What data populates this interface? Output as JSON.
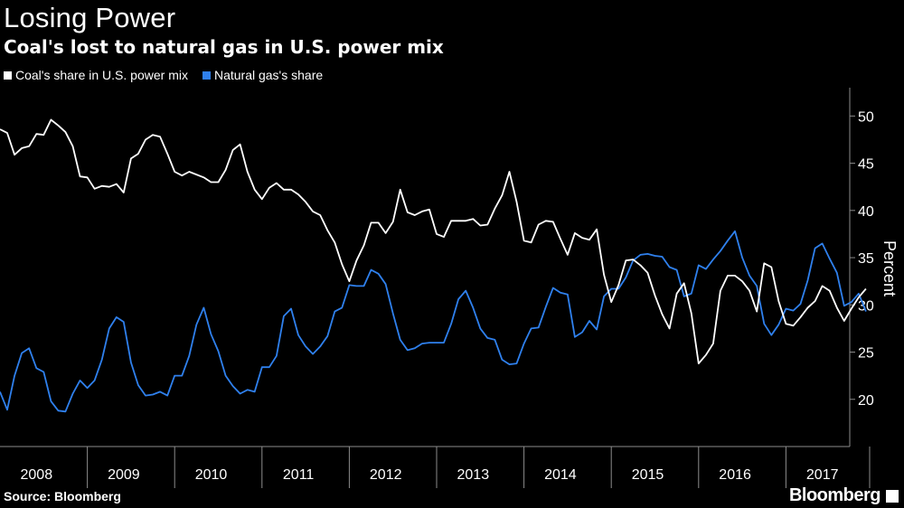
{
  "header": {
    "title": "Losing Power",
    "subtitle": "Coal's lost to natural gas in U.S. power mix"
  },
  "footer": {
    "source": "Source: Bloomberg",
    "brand": "Bloomberg"
  },
  "colors": {
    "background": "#000000",
    "coal": "#ffffff",
    "gas": "#2f80ed"
  },
  "chart_data": {
    "type": "line",
    "ylabel": "Percent",
    "xlabel": "",
    "ylim": [
      15,
      53
    ],
    "y_ticks": [
      20,
      25,
      30,
      35,
      40,
      45,
      50
    ],
    "x_ticks": [
      "2008",
      "2009",
      "2010",
      "2011",
      "2012",
      "2013",
      "2014",
      "2015",
      "2016",
      "2017"
    ],
    "x_start": "2008-01",
    "legend_position": "top-left",
    "series": [
      {
        "name": "Coal's share in U.S. power mix",
        "color": "#ffffff",
        "values": [
          48.6,
          48.2,
          45.9,
          46.6,
          46.8,
          48.1,
          48.0,
          49.6,
          49.0,
          48.3,
          46.8,
          43.6,
          43.5,
          42.3,
          42.6,
          42.5,
          42.8,
          41.9,
          45.5,
          46.0,
          47.5,
          48.0,
          47.8,
          46.0,
          44.1,
          43.7,
          44.1,
          43.8,
          43.5,
          43.0,
          43.0,
          44.3,
          46.4,
          47.0,
          44.1,
          42.2,
          41.2,
          42.4,
          42.9,
          42.2,
          42.2,
          41.7,
          40.9,
          39.9,
          39.5,
          37.9,
          36.6,
          34.3,
          32.5,
          34.7,
          36.3,
          38.7,
          38.7,
          37.6,
          38.8,
          42.2,
          39.8,
          39.5,
          39.9,
          40.1,
          37.5,
          37.2,
          38.9,
          38.9,
          38.9,
          39.1,
          38.4,
          38.5,
          40.2,
          41.6,
          44.1,
          40.9,
          36.8,
          36.6,
          38.5,
          38.9,
          38.8,
          37.0,
          35.3,
          37.6,
          37.1,
          36.9,
          38.0,
          33.2,
          30.3,
          32.1,
          34.7,
          34.8,
          34.2,
          33.4,
          31.0,
          29.0,
          27.5,
          31.2,
          32.3,
          29.1,
          23.8,
          24.7,
          25.9,
          31.5,
          33.1,
          33.1,
          32.5,
          31.5,
          29.3,
          34.4,
          34.0,
          30.4,
          28.0,
          27.8,
          28.7,
          29.7,
          30.4,
          32.0,
          31.5,
          29.7,
          28.3,
          29.6,
          30.8,
          31.7
        ]
      },
      {
        "name": "Natural gas's share",
        "color": "#2f80ed",
        "values": [
          20.8,
          18.9,
          22.5,
          24.9,
          25.4,
          23.3,
          22.9,
          19.8,
          18.8,
          18.7,
          20.6,
          22.0,
          21.2,
          22.0,
          24.2,
          27.5,
          28.7,
          28.2,
          23.9,
          21.5,
          20.4,
          20.5,
          20.8,
          20.4,
          22.5,
          22.5,
          24.6,
          27.9,
          29.7,
          26.9,
          25.1,
          22.5,
          21.4,
          20.6,
          21.0,
          20.8,
          23.4,
          23.4,
          24.6,
          28.8,
          29.6,
          26.8,
          25.6,
          24.8,
          25.6,
          26.7,
          29.3,
          29.7,
          32.1,
          32.0,
          32.0,
          33.7,
          33.3,
          32.2,
          29.1,
          26.3,
          25.2,
          25.4,
          25.9,
          26.0,
          26.0,
          26.0,
          28.0,
          30.6,
          31.5,
          29.7,
          27.5,
          26.5,
          26.3,
          24.2,
          23.7,
          23.8,
          25.9,
          27.5,
          27.6,
          29.8,
          31.8,
          31.3,
          31.1,
          26.6,
          27.1,
          28.3,
          27.4,
          30.9,
          31.7,
          31.7,
          32.9,
          34.7,
          35.3,
          35.4,
          35.2,
          35.1,
          34.0,
          33.7,
          30.9,
          31.2,
          34.2,
          33.8,
          34.8,
          35.7,
          36.8,
          37.8,
          35.0,
          33.1,
          32.0,
          28.0,
          26.8,
          27.9,
          29.6,
          29.4,
          30.1,
          32.6,
          36.0,
          36.5,
          34.9,
          33.4,
          29.9,
          30.3,
          31.2,
          29.3
        ]
      }
    ]
  }
}
